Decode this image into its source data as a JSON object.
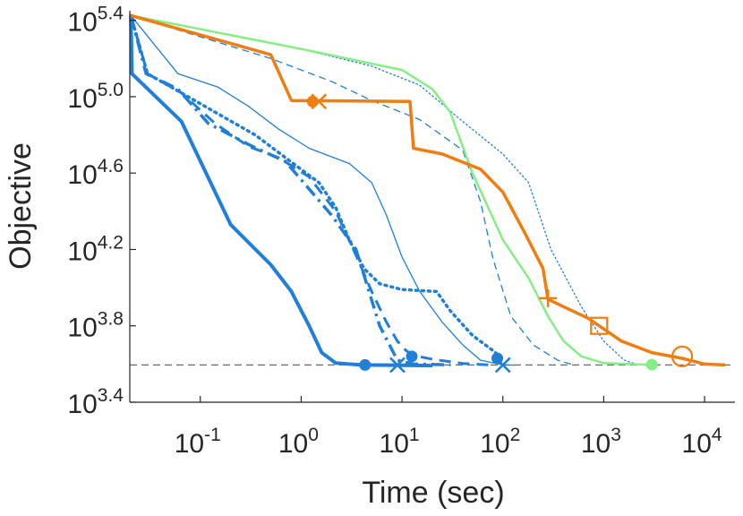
{
  "chart_data": {
    "type": "line",
    "xlabel": "Time (sec)",
    "ylabel": "Objective",
    "x_scale": "log",
    "y_scale": "log",
    "xlim": [
      0.02,
      20000
    ],
    "ylim_log10": [
      3.4,
      5.45
    ],
    "x_ticks": [
      {
        "value": 0.1,
        "base": "10",
        "exp": "-1"
      },
      {
        "value": 1,
        "base": "10",
        "exp": "0"
      },
      {
        "value": 10,
        "base": "10",
        "exp": "1"
      },
      {
        "value": 100,
        "base": "10",
        "exp": "2"
      },
      {
        "value": 1000,
        "base": "10",
        "exp": "3"
      },
      {
        "value": 10000,
        "base": "10",
        "exp": "4"
      }
    ],
    "y_ticks": [
      {
        "log10": 3.4,
        "base": "10",
        "exp": "3.4"
      },
      {
        "log10": 3.8,
        "base": "10",
        "exp": "3.8"
      },
      {
        "log10": 4.2,
        "base": "10",
        "exp": "4.2"
      },
      {
        "log10": 4.6,
        "base": "10",
        "exp": "4.6"
      },
      {
        "log10": 5.0,
        "base": "10",
        "exp": "5.0"
      },
      {
        "log10": 5.4,
        "base": "10",
        "exp": "5.4"
      }
    ],
    "reference_line_log10": 3.595,
    "colors": {
      "blue": "#1f7fd9",
      "orange": "#f07d10",
      "green": "#86ee86",
      "reference": "#707070",
      "axis": "#262626"
    },
    "series": [
      {
        "color": "blue",
        "style": "solid",
        "width": 4,
        "points": [
          [
            0.0205,
            5.425
          ],
          [
            0.021,
            5.12
          ],
          [
            0.065,
            4.87
          ],
          [
            0.2,
            4.33
          ],
          [
            0.5,
            4.12
          ],
          [
            0.8,
            3.98
          ],
          [
            1.2,
            3.8
          ],
          [
            1.6,
            3.66
          ],
          [
            2.2,
            3.605
          ],
          [
            4,
            3.595
          ],
          [
            8,
            3.594
          ],
          [
            20,
            3.592
          ]
        ],
        "marker": {
          "type": "dot",
          "x": 4.3,
          "y": 3.595
        }
      },
      {
        "color": "blue",
        "style": "dashdot",
        "width": 3.5,
        "points": [
          [
            0.0205,
            5.425
          ],
          [
            0.029,
            5.12
          ],
          [
            0.06,
            5.04
          ],
          [
            0.12,
            4.86
          ],
          [
            0.3,
            4.75
          ],
          [
            0.7,
            4.66
          ],
          [
            2,
            4.38
          ],
          [
            3.5,
            4.2
          ],
          [
            6,
            3.8
          ],
          [
            9,
            3.62
          ],
          [
            13,
            3.6
          ],
          [
            30,
            3.596
          ]
        ],
        "marker": {
          "type": "x",
          "x": 9,
          "y": 3.595
        }
      },
      {
        "color": "blue",
        "style": "dashed",
        "width": 3,
        "points": [
          [
            0.0205,
            5.425
          ],
          [
            0.03,
            5.12
          ],
          [
            0.065,
            5.02
          ],
          [
            0.14,
            4.86
          ],
          [
            0.3,
            4.74
          ],
          [
            0.6,
            4.68
          ],
          [
            1.2,
            4.58
          ],
          [
            2.2,
            4.4
          ],
          [
            3.5,
            4.17
          ],
          [
            5,
            3.98
          ],
          [
            7,
            3.82
          ],
          [
            9,
            3.72
          ],
          [
            11,
            3.67
          ],
          [
            13,
            3.645
          ],
          [
            20,
            3.625
          ],
          [
            40,
            3.603
          ],
          [
            80,
            3.594
          ]
        ],
        "marker": {
          "type": "dot",
          "x": 12.5,
          "y": 3.64
        }
      },
      {
        "color": "blue",
        "style": "dotted",
        "width": 3.5,
        "points": [
          [
            0.0205,
            5.425
          ],
          [
            0.03,
            5.12
          ],
          [
            0.065,
            5.02
          ],
          [
            0.15,
            4.91
          ],
          [
            0.35,
            4.8
          ],
          [
            0.7,
            4.68
          ],
          [
            1.5,
            4.55
          ],
          [
            2.2,
            4.42
          ],
          [
            3,
            4.25
          ],
          [
            4.2,
            4.1
          ],
          [
            6,
            4.02
          ],
          [
            10,
            3.99
          ],
          [
            22,
            3.98
          ],
          [
            30,
            3.88
          ],
          [
            50,
            3.75
          ],
          [
            80,
            3.67
          ],
          [
            100,
            3.625
          ]
        ],
        "marker": {
          "type": "dot",
          "x": 88,
          "y": 3.63
        }
      },
      {
        "color": "blue",
        "style": "solid",
        "width": 1.3,
        "points": [
          [
            0.0205,
            5.425
          ],
          [
            0.06,
            5.12
          ],
          [
            0.15,
            5.05
          ],
          [
            0.3,
            4.95
          ],
          [
            0.6,
            4.83
          ],
          [
            1.2,
            4.73
          ],
          [
            3,
            4.65
          ],
          [
            5,
            4.55
          ],
          [
            7,
            4.38
          ],
          [
            10,
            4.16
          ],
          [
            15,
            3.98
          ],
          [
            25,
            3.82
          ],
          [
            40,
            3.7
          ],
          [
            60,
            3.62
          ],
          [
            100,
            3.596
          ],
          [
            130,
            3.594
          ]
        ],
        "marker": {
          "type": "x",
          "x": 100,
          "y": 3.595
        }
      },
      {
        "color": "blue",
        "style": "dashed",
        "width": 1.3,
        "points": [
          [
            0.0205,
            5.425
          ],
          [
            0.5,
            5.2
          ],
          [
            2,
            5.08
          ],
          [
            5,
            4.98
          ],
          [
            15,
            4.88
          ],
          [
            40,
            4.72
          ],
          [
            60,
            4.45
          ],
          [
            80,
            4.15
          ],
          [
            120,
            3.85
          ],
          [
            200,
            3.7
          ],
          [
            350,
            3.62
          ],
          [
            500,
            3.596
          ]
        ]
      },
      {
        "color": "blue",
        "style": "dotted",
        "width": 1.3,
        "points": [
          [
            0.0205,
            5.425
          ],
          [
            1,
            5.25
          ],
          [
            5,
            5.16
          ],
          [
            15,
            5.06
          ],
          [
            40,
            4.87
          ],
          [
            100,
            4.7
          ],
          [
            180,
            4.55
          ],
          [
            300,
            4.2
          ],
          [
            600,
            3.9
          ],
          [
            1000,
            3.72
          ],
          [
            1600,
            3.62
          ],
          [
            2200,
            3.596
          ]
        ]
      },
      {
        "color": "green",
        "style": "solid",
        "width": 2.5,
        "points": [
          [
            0.0205,
            5.425
          ],
          [
            1,
            5.25
          ],
          [
            10,
            5.14
          ],
          [
            20,
            5.04
          ],
          [
            30,
            4.92
          ],
          [
            50,
            4.6
          ],
          [
            100,
            4.25
          ],
          [
            180,
            4.05
          ],
          [
            280,
            3.85
          ],
          [
            400,
            3.72
          ],
          [
            600,
            3.64
          ],
          [
            1000,
            3.605
          ],
          [
            3000,
            3.596
          ]
        ],
        "marker": {
          "type": "dot",
          "x": 3000,
          "y": 3.597
        }
      },
      {
        "color": "orange",
        "style": "solid",
        "width": 3.5,
        "points": [
          [
            0.0205,
            5.425
          ],
          [
            0.5,
            5.22
          ],
          [
            0.8,
            4.98
          ],
          [
            12,
            4.975
          ],
          [
            13,
            4.73
          ],
          [
            25,
            4.7
          ],
          [
            60,
            4.62
          ],
          [
            100,
            4.5
          ],
          [
            160,
            4.3
          ],
          [
            250,
            4.1
          ],
          [
            280,
            3.94
          ],
          [
            400,
            3.9
          ],
          [
            700,
            3.84
          ],
          [
            900,
            3.8
          ],
          [
            1500,
            3.72
          ],
          [
            3000,
            3.66
          ],
          [
            6000,
            3.63
          ],
          [
            10000,
            3.6
          ],
          [
            16000,
            3.595
          ]
        ],
        "markers": [
          {
            "type": "dot",
            "x": 1.3,
            "y": 4.975
          },
          {
            "type": "x",
            "x": 1.5,
            "y": 4.975
          },
          {
            "type": "plus",
            "x": 280,
            "y": 3.945
          },
          {
            "type": "square",
            "x": 900,
            "y": 3.8
          },
          {
            "type": "circle",
            "x": 6000,
            "y": 3.64
          }
        ]
      }
    ]
  }
}
